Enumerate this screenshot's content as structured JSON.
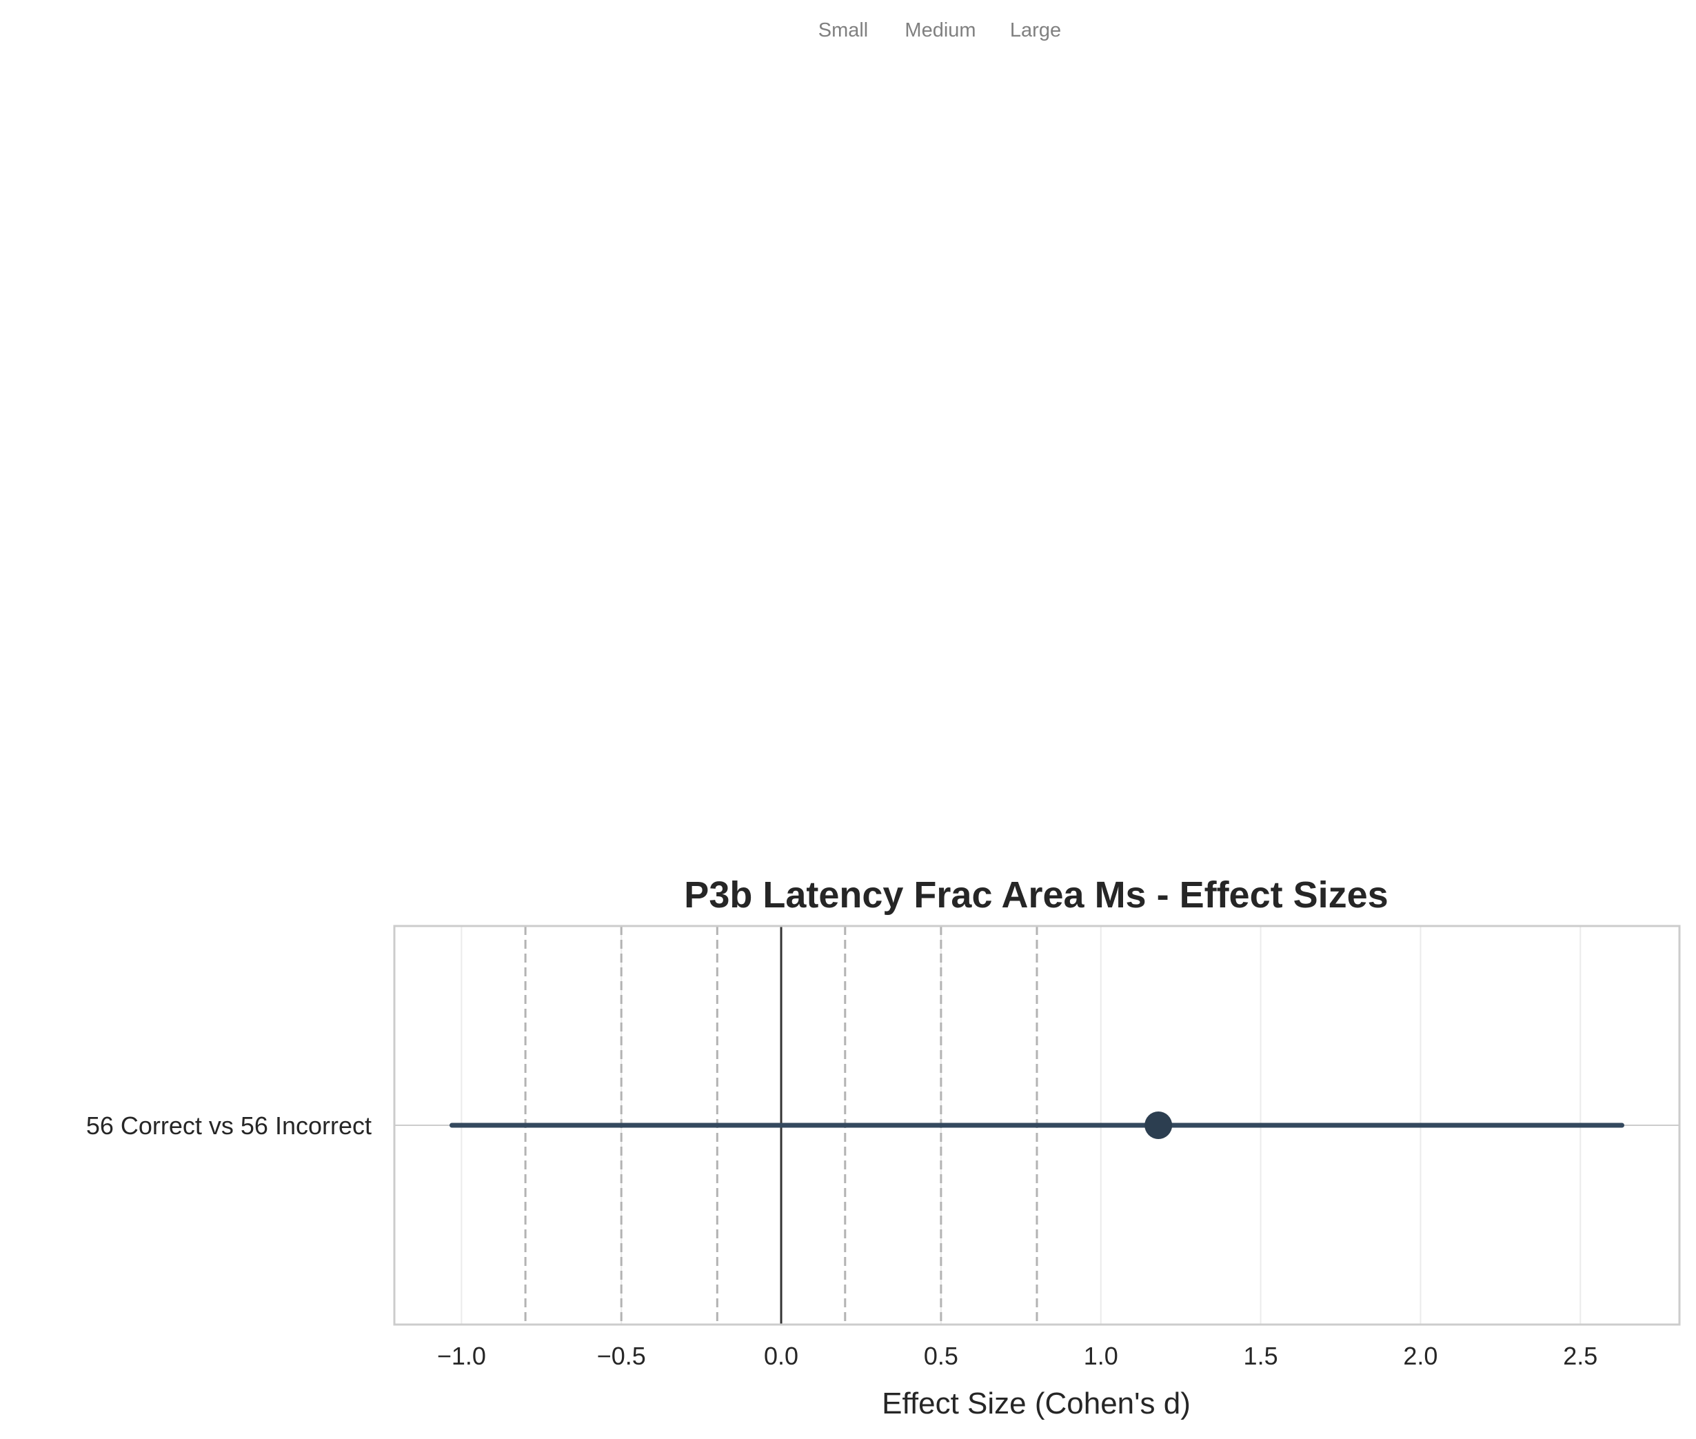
{
  "chart_data": {
    "type": "forest",
    "title": "P3b Latency Frac Area Ms - Effect Sizes",
    "xlabel": "Effect Size (Cohen's d)",
    "ylabel": "",
    "xlim": [
      -1.21,
      2.81
    ],
    "xticks": [
      -1.0,
      -0.5,
      0.0,
      0.5,
      1.0,
      1.5,
      2.0,
      2.5
    ],
    "xtick_labels": [
      "−1.0",
      "−0.5",
      "0.0",
      "0.5",
      "1.0",
      "1.5",
      "2.0",
      "2.5"
    ],
    "grid": true,
    "reference_lines": {
      "zero": 0.0,
      "thresholds": [
        -0.8,
        -0.5,
        -0.2,
        0.2,
        0.5,
        0.8
      ],
      "style": "dashed"
    },
    "reference_labels": [
      "Small",
      "Medium",
      "Large"
    ],
    "comparisons": [
      {
        "label": "56 Correct vs 56 Incorrect",
        "effect": 1.18,
        "ci_low": -1.03,
        "ci_high": 2.63
      }
    ],
    "colors": {
      "marker": "#2c3e50",
      "ci_line": "#34495e",
      "zero_line": "#333333",
      "threshold_line": "#b3b3b3",
      "grid": "#ebebeb",
      "frame": "#cccccc",
      "ref_label": "#808080"
    }
  }
}
